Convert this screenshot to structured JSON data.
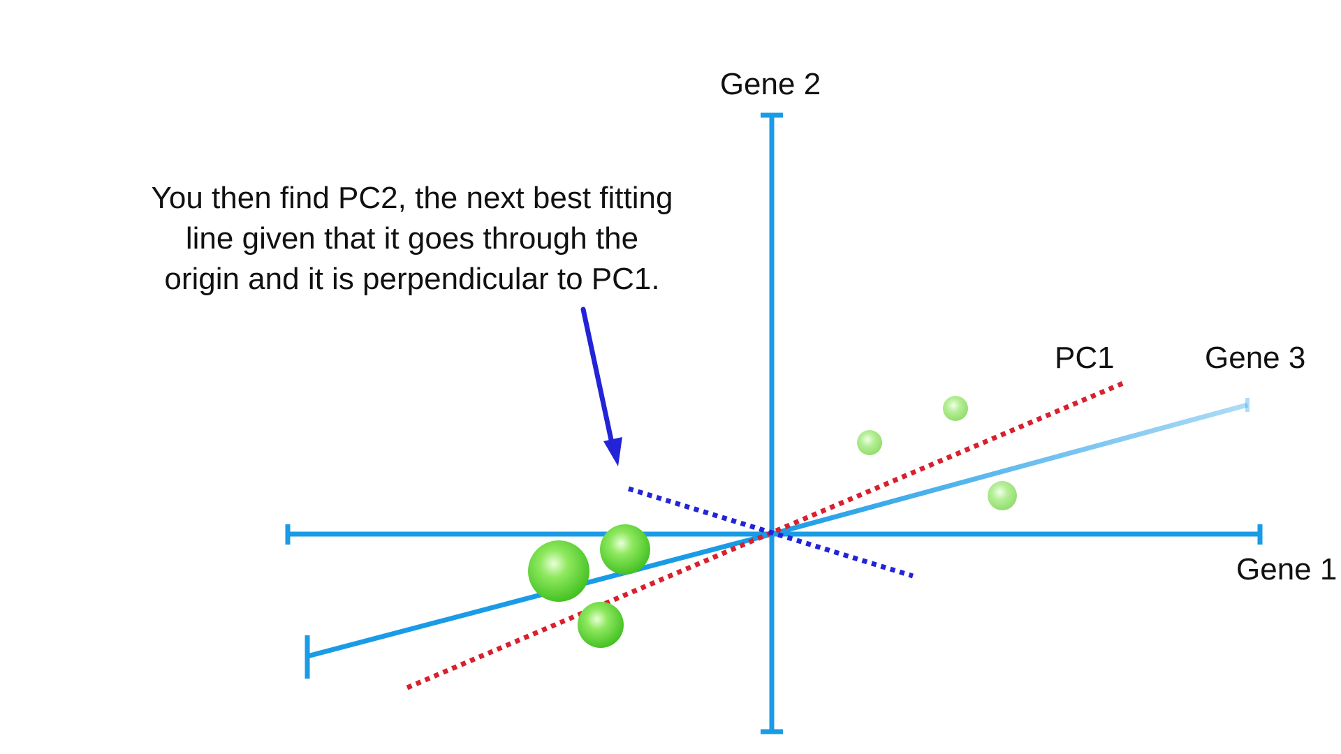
{
  "caption": {
    "lines": [
      "You then find PC2, the next best fitting",
      "line given that it goes through the",
      "origin and it is perpendicular to PC1."
    ]
  },
  "axes": {
    "gene1_label": "Gene 1",
    "gene2_label": "Gene 2",
    "gene3_label": "Gene 3",
    "axis_color": "#1a9be6"
  },
  "principal_components": {
    "pc1_label": "PC1",
    "pc1_color": "#d8202e",
    "pc2_color": "#2323d8"
  },
  "arrow": {
    "color": "#2323d8"
  },
  "points": {
    "color": "#5fd63a",
    "count": 6
  }
}
